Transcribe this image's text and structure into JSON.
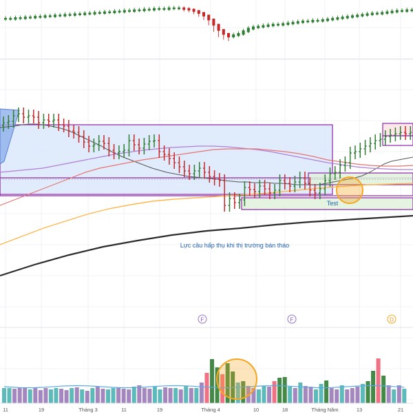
{
  "colors": {
    "up": "#2e7d32",
    "down": "#c62828",
    "zone_fill": "#dbe8fb",
    "zone_border": "#8e24aa",
    "green_box": "#dff2dc",
    "pink_box": "#fde3e5",
    "ma_fast": "#555555",
    "ma_violet": "#b07fd6",
    "ma_red": "#e57373",
    "ma_orange": "#ffb74d",
    "ma_black": "#2b2b2b",
    "vol_up": "#2e7d32",
    "vol_down": "#f06277",
    "vol_teal": "#4ab3b3",
    "vol_purple": "#9b7ab8",
    "highlight": "#f5a623",
    "annotation_text": "#1e5fb4"
  },
  "annotations": {
    "absorption": "Lực cầu hấp thụ khi thị trường bán tháo",
    "test": "Test"
  },
  "markers": [
    {
      "label": "F",
      "icon": "circle-marker-icon"
    },
    {
      "label": "F",
      "icon": "circle-marker-icon"
    },
    {
      "label": "D",
      "icon": "circle-marker-icon"
    }
  ],
  "chart_data": {
    "type": "candlestick",
    "x_tick_labels": [
      "11",
      "19",
      "Tháng 3",
      "11",
      "19",
      "Tháng 4",
      "10",
      "18",
      "Tháng Năm",
      "13",
      "21"
    ],
    "grid": true,
    "legend": "none",
    "panels": [
      "index-overview",
      "price",
      "volume"
    ],
    "index_overview": {
      "type": "candlestick",
      "values": [
        47,
        47,
        46,
        46,
        45,
        45,
        44,
        44,
        43,
        43,
        42,
        42,
        41,
        41,
        40,
        40,
        39,
        39,
        38,
        38,
        37,
        37,
        36,
        36,
        35,
        35,
        34,
        34,
        33,
        33,
        32,
        32,
        32,
        31,
        31,
        31,
        32,
        33,
        35,
        38,
        42,
        48,
        56,
        64,
        70,
        74,
        72,
        70,
        66,
        62,
        60,
        59,
        58,
        57,
        56,
        56,
        55,
        54,
        53,
        52,
        51,
        51,
        50,
        50,
        49,
        48,
        47,
        46,
        45,
        44,
        43,
        42,
        41,
        40,
        39,
        39,
        38,
        37,
        36,
        35,
        35,
        34,
        34
      ]
    },
    "series": [
      {
        "name": "",
        "type": "ohlc",
        "close": [
          178,
          176,
          168,
          165,
          170,
          168,
          170,
          178,
          174,
          176,
          174,
          181,
          183,
          190,
          192,
          198,
          206,
          212,
          210,
          205,
          208,
          218,
          222,
          220,
          218,
          204,
          210,
          215,
          209,
          205,
          204,
          220,
          224,
          230,
          236,
          242,
          248,
          252,
          248,
          244,
          250,
          256,
          260,
          262,
          298,
          288,
          294,
          290,
          272,
          275,
          278,
          270,
          274,
          280,
          276,
          262,
          266,
          270,
          264,
          258,
          266,
          276,
          280,
          274,
          262,
          252,
          250,
          240,
          236,
          222,
          220,
          216,
          212,
          208,
          204,
          202,
          198,
          196,
          194,
          192,
          194,
          192
        ]
      },
      {
        "name": "",
        "type": "ma",
        "values": [
          185,
          184,
          183,
          181,
          180,
          180,
          181,
          183,
          185,
          188,
          192,
          197,
          202,
          207,
          212,
          218,
          223,
          228,
          232,
          236,
          240,
          244,
          247,
          250,
          252,
          254,
          256,
          257,
          258,
          259,
          260,
          262,
          263,
          264,
          264,
          265,
          265,
          265,
          266,
          266,
          267,
          268,
          268,
          268,
          268,
          266,
          264,
          262,
          260,
          258,
          255,
          250,
          244,
          238,
          234,
          232,
          230,
          228
        ]
      },
      {
        "name": "",
        "type": "ma",
        "values": [
          250,
          248,
          246,
          244,
          240,
          236,
          232,
          228,
          224,
          221,
          218,
          216,
          214,
          213,
          212,
          212,
          213,
          215,
          217,
          220,
          224,
          228,
          232,
          236,
          239,
          242,
          244,
          245,
          246,
          246
        ]
      },
      {
        "name": "",
        "type": "ma",
        "values": [
          298,
          290,
          282,
          274,
          266,
          258,
          250,
          244,
          240,
          236,
          232,
          229,
          226,
          223,
          220,
          217,
          216,
          216,
          216,
          218,
          220,
          223,
          227,
          232,
          235,
          238,
          240,
          241,
          241,
          240
        ]
      },
      {
        "name": "",
        "type": "ma",
        "values": [
          355,
          343,
          331,
          321,
          311,
          303,
          297,
          292,
          289,
          287,
          285,
          283,
          281,
          278,
          275,
          272,
          270,
          268,
          267,
          266
        ]
      },
      {
        "name": "",
        "type": "ma",
        "values": [
          400,
          384,
          370,
          358,
          349,
          341,
          335,
          331,
          326,
          322,
          319,
          316,
          313
        ]
      }
    ],
    "volume": {
      "type": "bar",
      "values": [
        22,
        22,
        21,
        23,
        22,
        20,
        22,
        19,
        22,
        20,
        22,
        21,
        19,
        22,
        23,
        20,
        18,
        22,
        24,
        21,
        20,
        22,
        23,
        21,
        20,
        24,
        26,
        22,
        21,
        24,
        20,
        23,
        22,
        22,
        20,
        25,
        22,
        22,
        30,
        44,
        64,
        52,
        42,
        58,
        46,
        30,
        32,
        25,
        22,
        20,
        25,
        24,
        32,
        37,
        38,
        24,
        22,
        30,
        25,
        24,
        20,
        28,
        33,
        22,
        20,
        26,
        20,
        22,
        24,
        28,
        32,
        47,
        65,
        40,
        26,
        20,
        26,
        21
      ]
    }
  }
}
